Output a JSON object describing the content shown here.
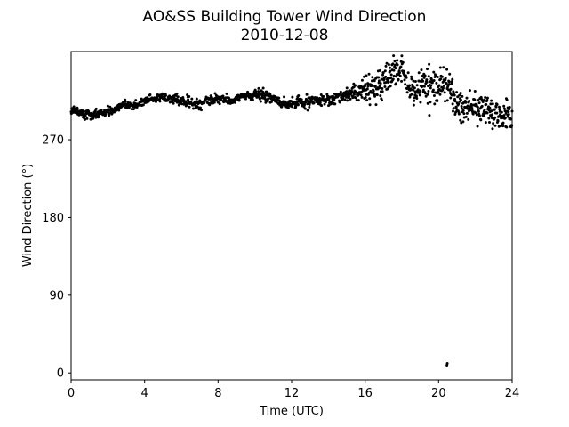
{
  "chart_data": {
    "type": "scatter",
    "title": "AO&SS Building Tower Wind Direction",
    "subtitle": "2010-12-08",
    "xlabel": "Time (UTC)",
    "ylabel": "Wind Direction (°)",
    "xlim": [
      0,
      24
    ],
    "ylim": [
      -8,
      372
    ],
    "xticks": [
      0,
      4,
      8,
      12,
      16,
      20,
      24
    ],
    "yticks": [
      0,
      90,
      180,
      270
    ],
    "grid": false,
    "marker_color": "#000000",
    "trend": [
      [
        0,
        302
      ],
      [
        1,
        299
      ],
      [
        2,
        303
      ],
      [
        3,
        308
      ],
      [
        4,
        315
      ],
      [
        5,
        320
      ],
      [
        6,
        314
      ],
      [
        7,
        313
      ],
      [
        8,
        317
      ],
      [
        9,
        318
      ],
      [
        10,
        323
      ],
      [
        11,
        318
      ],
      [
        12,
        310
      ],
      [
        13,
        313
      ],
      [
        14,
        318
      ],
      [
        15,
        322
      ],
      [
        16,
        330
      ],
      [
        17,
        335
      ],
      [
        17.5,
        345
      ],
      [
        18,
        348
      ],
      [
        18.5,
        322
      ],
      [
        19,
        332
      ],
      [
        20,
        330
      ],
      [
        20.5,
        338
      ],
      [
        21,
        310
      ],
      [
        22,
        308
      ],
      [
        23,
        302
      ],
      [
        24,
        296
      ]
    ],
    "spread": [
      [
        0,
        2
      ],
      [
        14,
        3
      ],
      [
        15.8,
        5
      ],
      [
        16.5,
        9
      ],
      [
        18,
        9
      ],
      [
        19.5,
        11
      ],
      [
        21,
        9
      ],
      [
        24,
        8
      ]
    ],
    "outliers": [
      {
        "x": 20.45,
        "y": 9
      },
      {
        "x": 20.47,
        "y": 11
      }
    ]
  }
}
